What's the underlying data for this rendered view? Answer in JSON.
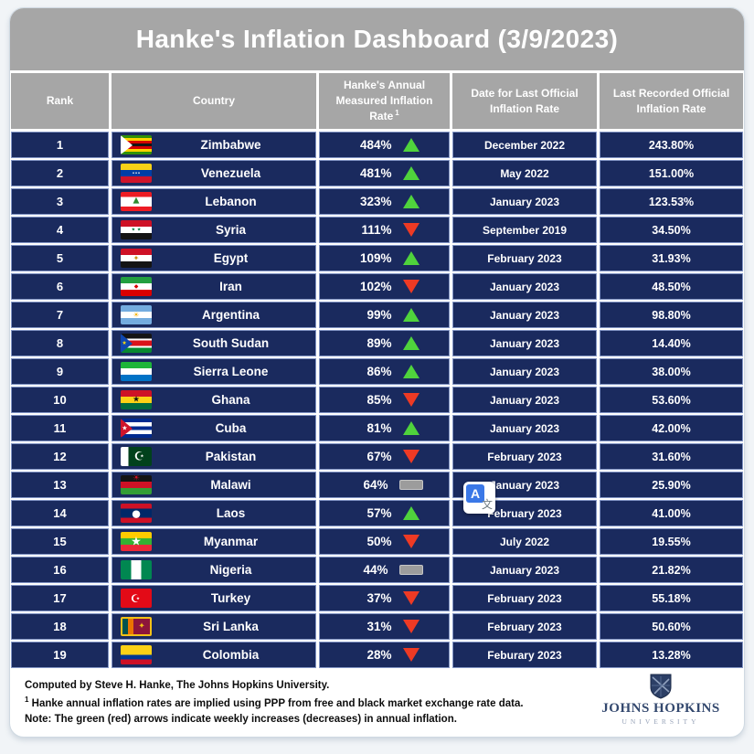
{
  "title": "Hanke's Inflation Dashboard (3/9/2023)",
  "chart_data": {
    "type": "table",
    "title": "Hanke's Inflation Dashboard (3/9/2023)",
    "columns": [
      "Rank",
      "Country",
      "Hanke's Annual Measured Inflation Rate",
      "Date for Last Official Inflation Rate",
      "Last Recorded Official Inflation Rate"
    ],
    "rate_column_footnote_marker": "1",
    "rows": [
      {
        "rank": "1",
        "country": "Zimbabwe",
        "hanke_rate": "484%",
        "trend": "up",
        "official_date": "December 2022",
        "official_rate": "243.80%",
        "flag": {
          "dir": "h",
          "stripes": [
            {
              "c": "#319208"
            },
            {
              "c": "#ffd200"
            },
            {
              "c": "#d40000"
            },
            {
              "c": "#141414"
            },
            {
              "c": "#d40000"
            },
            {
              "c": "#ffd200"
            },
            {
              "c": "#319208"
            }
          ],
          "hoist": {
            "c": "#ffffff"
          }
        }
      },
      {
        "rank": "2",
        "country": "Venezuela",
        "hanke_rate": "481%",
        "trend": "up",
        "official_date": "May 2022",
        "official_rate": "151.00%",
        "flag": {
          "dir": "h",
          "stripes": [
            {
              "c": "#f7d117"
            },
            {
              "c": "#003da5"
            },
            {
              "c": "#cf142b"
            }
          ],
          "emblems": [
            {
              "t": "···",
              "c": "#e8e8e8",
              "s": 8,
              "y": 50
            }
          ]
        }
      },
      {
        "rank": "3",
        "country": "Lebanon",
        "hanke_rate": "323%",
        "trend": "up",
        "official_date": "January 2023",
        "official_rate": "123.53%",
        "flag": {
          "dir": "h",
          "stripes": [
            {
              "c": "#ed1c24"
            },
            {
              "c": "#ffffff",
              "w": 2
            },
            {
              "c": "#ed1c24"
            }
          ],
          "emblems": [
            {
              "t": "▲",
              "c": "#2e8b2e",
              "s": 9,
              "y": 48
            }
          ]
        }
      },
      {
        "rank": "4",
        "country": "Syria",
        "hanke_rate": "111%",
        "trend": "down",
        "official_date": "September 2019",
        "official_rate": "34.50%",
        "flag": {
          "dir": "h",
          "stripes": [
            {
              "c": "#ce1126"
            },
            {
              "c": "#ffffff"
            },
            {
              "c": "#141414"
            }
          ],
          "emblems": [
            {
              "t": "★ ★",
              "c": "#007a3d",
              "s": 5,
              "y": 50
            }
          ]
        }
      },
      {
        "rank": "5",
        "country": "Egypt",
        "hanke_rate": "109%",
        "trend": "up",
        "official_date": "February 2023",
        "official_rate": "31.93%",
        "flag": {
          "dir": "h",
          "stripes": [
            {
              "c": "#ce1126"
            },
            {
              "c": "#ffffff"
            },
            {
              "c": "#141414"
            }
          ],
          "emblems": [
            {
              "t": "✦",
              "c": "#c69214",
              "s": 8,
              "y": 50
            }
          ]
        }
      },
      {
        "rank": "6",
        "country": "Iran",
        "hanke_rate": "102%",
        "trend": "down",
        "official_date": "January 2023",
        "official_rate": "48.50%",
        "flag": {
          "dir": "h",
          "stripes": [
            {
              "c": "#239f40"
            },
            {
              "c": "#ffffff"
            },
            {
              "c": "#da0000"
            }
          ],
          "emblems": [
            {
              "t": "◆",
              "c": "#da0000",
              "s": 6,
              "y": 50
            }
          ]
        }
      },
      {
        "rank": "7",
        "country": "Argentina",
        "hanke_rate": "99%",
        "trend": "up",
        "official_date": "January 2023",
        "official_rate": "98.80%",
        "flag": {
          "dir": "h",
          "stripes": [
            {
              "c": "#74acdf"
            },
            {
              "c": "#ffffff"
            },
            {
              "c": "#74acdf"
            }
          ],
          "emblems": [
            {
              "t": "☀",
              "c": "#f6b40e",
              "s": 8,
              "y": 50
            }
          ]
        }
      },
      {
        "rank": "8",
        "country": "South Sudan",
        "hanke_rate": "89%",
        "trend": "up",
        "official_date": "January 2023",
        "official_rate": "14.40%",
        "flag": {
          "dir": "h",
          "stripes": [
            {
              "c": "#141414",
              "w": 3
            },
            {
              "c": "#ffffff"
            },
            {
              "c": "#da121a",
              "w": 3
            },
            {
              "c": "#ffffff"
            },
            {
              "c": "#078930",
              "w": 3
            }
          ],
          "hoist": {
            "c": "#0f47af"
          },
          "emblems": [
            {
              "t": "★",
              "c": "#fcdd09",
              "s": 6,
              "x": 12,
              "y": 50
            }
          ]
        }
      },
      {
        "rank": "9",
        "country": "Sierra Leone",
        "hanke_rate": "86%",
        "trend": "up",
        "official_date": "January 2023",
        "official_rate": "38.00%",
        "flag": {
          "dir": "h",
          "stripes": [
            {
              "c": "#1eb53a"
            },
            {
              "c": "#ffffff"
            },
            {
              "c": "#0072c6"
            }
          ]
        }
      },
      {
        "rank": "10",
        "country": "Ghana",
        "hanke_rate": "85%",
        "trend": "down",
        "official_date": "January 2023",
        "official_rate": "53.60%",
        "flag": {
          "dir": "h",
          "stripes": [
            {
              "c": "#ce1126"
            },
            {
              "c": "#fcd116"
            },
            {
              "c": "#006b3f"
            }
          ],
          "emblems": [
            {
              "t": "★",
              "c": "#141414",
              "s": 9,
              "y": 50
            }
          ]
        }
      },
      {
        "rank": "11",
        "country": "Cuba",
        "hanke_rate": "81%",
        "trend": "up",
        "official_date": "January 2023",
        "official_rate": "42.00%",
        "flag": {
          "dir": "h",
          "stripes": [
            {
              "c": "#002a8f"
            },
            {
              "c": "#ffffff"
            },
            {
              "c": "#002a8f"
            },
            {
              "c": "#ffffff"
            },
            {
              "c": "#002a8f"
            }
          ],
          "hoist": {
            "c": "#cf142b"
          },
          "emblems": [
            {
              "t": "★",
              "c": "#ffffff",
              "s": 7,
              "x": 13,
              "y": 50
            }
          ]
        }
      },
      {
        "rank": "12",
        "country": "Pakistan",
        "hanke_rate": "67%",
        "trend": "down",
        "official_date": "February 2023",
        "official_rate": "31.60%",
        "flag": {
          "dir": "v",
          "stripes": [
            {
              "c": "#ffffff"
            },
            {
              "c": "#01411c",
              "w": 3
            }
          ],
          "emblems": [
            {
              "t": "☪",
              "c": "#ffffff",
              "s": 13,
              "x": 60,
              "y": 50
            }
          ]
        }
      },
      {
        "rank": "13",
        "country": "Malawi",
        "hanke_rate": "64%",
        "trend": "flat",
        "official_date": "January 2023",
        "official_rate": "25.90%",
        "flag": {
          "dir": "h",
          "stripes": [
            {
              "c": "#141414"
            },
            {
              "c": "#ce1126"
            },
            {
              "c": "#339e35"
            }
          ],
          "emblems": [
            {
              "t": "☀",
              "c": "#ce1126",
              "s": 9,
              "y": 18
            }
          ]
        }
      },
      {
        "rank": "14",
        "country": "Laos",
        "hanke_rate": "57%",
        "trend": "up",
        "official_date": "February 2023",
        "official_rate": "41.00%",
        "flag": {
          "dir": "h",
          "stripes": [
            {
              "c": "#ce1126"
            },
            {
              "c": "#002868",
              "w": 2
            },
            {
              "c": "#ce1126"
            }
          ],
          "emblems": [
            {
              "t": "●",
              "c": "#ffffff",
              "s": 11,
              "y": 50
            }
          ]
        }
      },
      {
        "rank": "15",
        "country": "Myanmar",
        "hanke_rate": "50%",
        "trend": "down",
        "official_date": "July 2022",
        "official_rate": "19.55%",
        "flag": {
          "dir": "h",
          "stripes": [
            {
              "c": "#fecb00"
            },
            {
              "c": "#34b233"
            },
            {
              "c": "#ea2839"
            }
          ],
          "emblems": [
            {
              "t": "★",
              "c": "#ffffff",
              "s": 13,
              "y": 50
            }
          ]
        }
      },
      {
        "rank": "16",
        "country": "Nigeria",
        "hanke_rate": "44%",
        "trend": "flat",
        "official_date": "January 2023",
        "official_rate": "21.82%",
        "flag": {
          "dir": "v",
          "stripes": [
            {
              "c": "#008751"
            },
            {
              "c": "#ffffff"
            },
            {
              "c": "#008751"
            }
          ]
        }
      },
      {
        "rank": "17",
        "country": "Turkey",
        "hanke_rate": "37%",
        "trend": "down",
        "official_date": "February 2023",
        "official_rate": "55.18%",
        "flag": {
          "dir": "h",
          "stripes": [
            {
              "c": "#e30a17"
            }
          ],
          "emblems": [
            {
              "t": "☪",
              "c": "#ffffff",
              "s": 12,
              "x": 48,
              "y": 50
            }
          ]
        }
      },
      {
        "rank": "18",
        "country": "Sri Lanka",
        "hanke_rate": "31%",
        "trend": "down",
        "official_date": "February 2023",
        "official_rate": "50.60%",
        "flag": {
          "dir": "v",
          "stripes": [
            {
              "c": "#00534e"
            },
            {
              "c": "#eb7400"
            },
            {
              "c": "#8d153a",
              "w": 3
            }
          ],
          "border": "#f3c117",
          "emblems": [
            {
              "t": "✦",
              "c": "#f3c117",
              "s": 9,
              "x": 70,
              "y": 50
            }
          ]
        }
      },
      {
        "rank": "19",
        "country": "Colombia",
        "hanke_rate": "28%",
        "trend": "down",
        "official_date": "Feburary 2023",
        "official_rate": "13.28%",
        "flag": {
          "dir": "h",
          "stripes": [
            {
              "c": "#fcd116",
              "w": 2
            },
            {
              "c": "#003893"
            },
            {
              "c": "#ce1126"
            }
          ]
        }
      }
    ],
    "trend_legend": {
      "up": "weekly increase in annual inflation (green arrow)",
      "down": "weekly decrease in annual inflation (red arrow)",
      "flat": "no change (gray bar)"
    }
  },
  "footer": {
    "line1": "Computed by Steve H. Hanke, The Johns Hopkins University.",
    "footnote_marker": "1",
    "footnote_text": " Hanke annual inflation rates are implied using PPP from free and black market exchange rate data.",
    "note": "Note: The green (red) arrows indicate weekly increases (decreases) in annual inflation."
  },
  "logo": {
    "line1": "JOHNS HOPKINS",
    "line2": "UNIVERSITY"
  },
  "translate_overlay": {
    "letter": "A",
    "glyph": "文"
  },
  "colors": {
    "row_navy": "#1a2a5e",
    "header_gray": "#a6a6a6",
    "up_green": "#4fd33c",
    "down_red": "#ee3a24",
    "flat_gray": "#9c9c9c",
    "border_blue": "#8295c5"
  }
}
